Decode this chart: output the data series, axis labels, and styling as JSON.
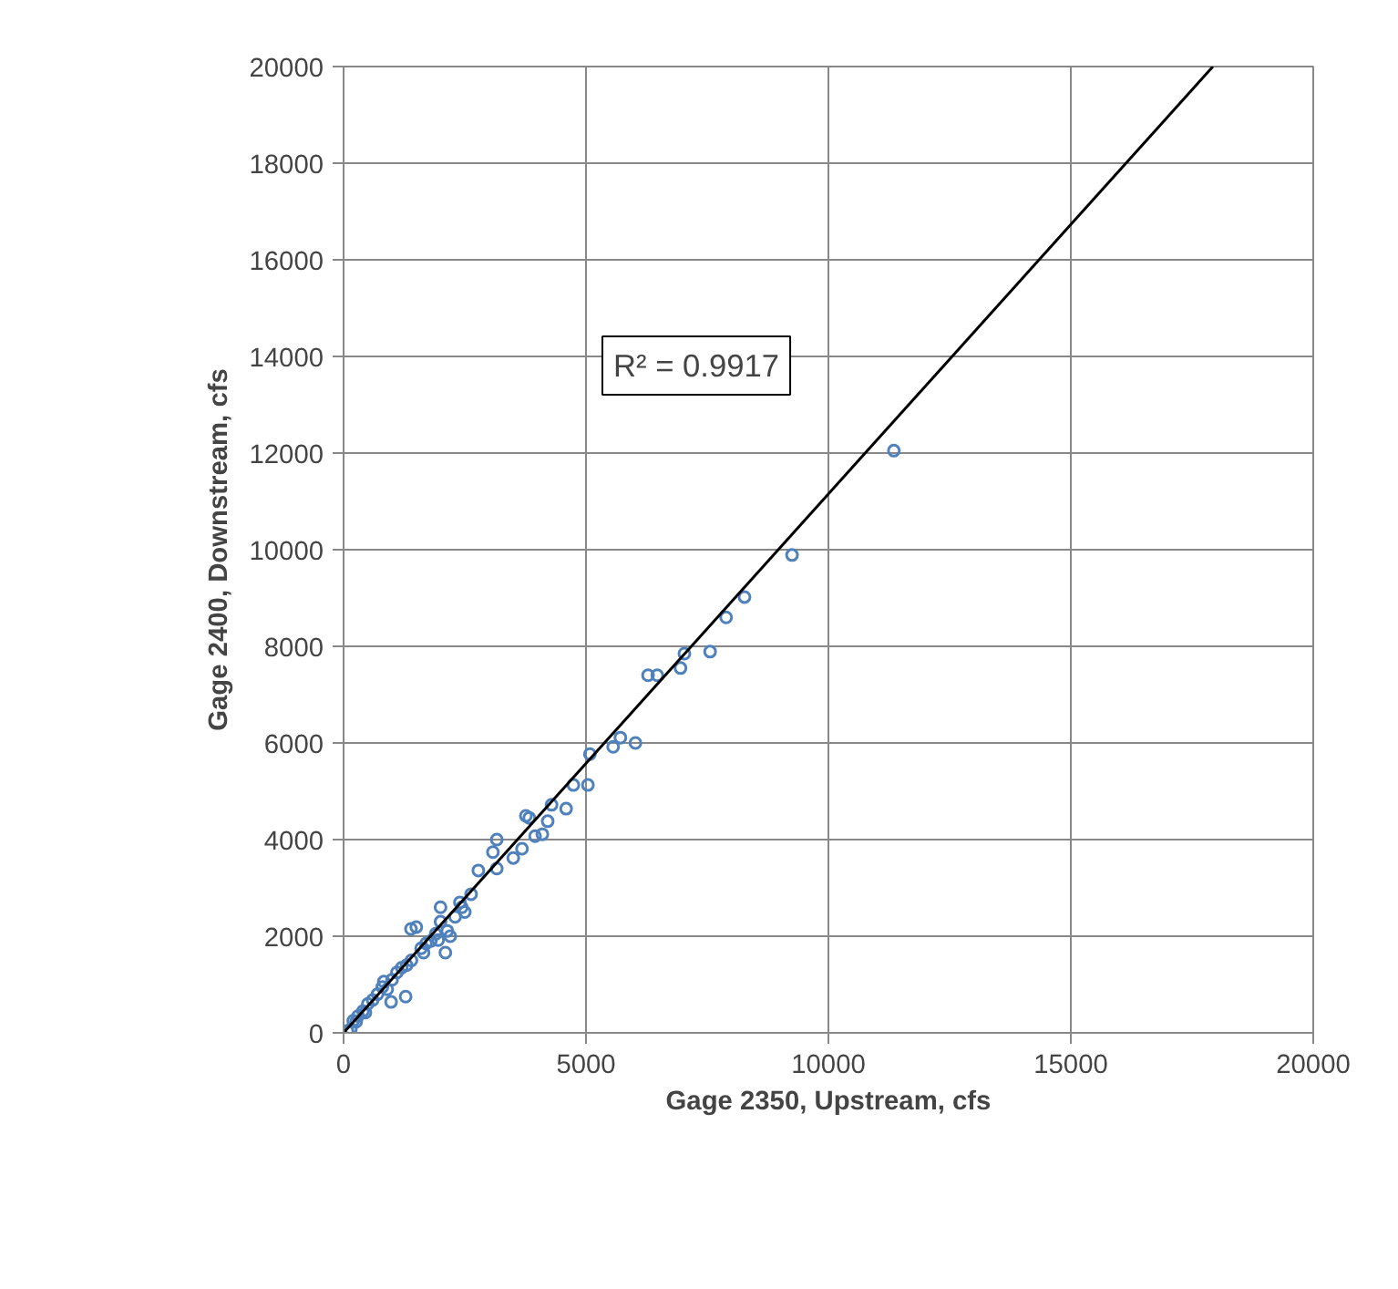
{
  "chart_data": {
    "type": "scatter",
    "xlabel": "Gage 2350, Upstream, cfs",
    "ylabel": "Gage 2400, Downstream, cfs",
    "xlim": [
      0,
      20000
    ],
    "ylim": [
      0,
      20000
    ],
    "xticks": [
      0,
      5000,
      10000,
      15000,
      20000
    ],
    "yticks": [
      0,
      2000,
      4000,
      6000,
      8000,
      10000,
      12000,
      14000,
      16000,
      18000,
      20000
    ],
    "grid": true,
    "annotations": [
      "R² = 0.9917"
    ],
    "series": [
      {
        "marker": "circle",
        "color": "#4f81bd",
        "x": [
          11350,
          9250,
          8270,
          7890,
          7560,
          7030,
          6950,
          6470,
          6280,
          6020,
          5710,
          5560,
          5040,
          5080,
          4740,
          4590,
          4290,
          4210,
          4100,
          3950,
          3760,
          3830,
          3680,
          3500,
          3160,
          3080,
          3160,
          2780,
          2630,
          2440,
          2140,
          1950,
          2100,
          1500,
          1390,
          1650,
          1280,
          980,
          830,
          600,
          450,
          260,
          150,
          80,
          1800,
          1600,
          1200,
          1000,
          700,
          500,
          300,
          2300,
          2000,
          2200,
          900,
          1400,
          2400,
          2000,
          1100,
          1700,
          2500,
          1300,
          800,
          400,
          200,
          1900
        ],
        "values": [
          12050,
          9890,
          9020,
          8600,
          7890,
          7850,
          7550,
          7400,
          7400,
          6000,
          6110,
          5920,
          5130,
          5770,
          5130,
          4640,
          4720,
          4380,
          4110,
          4070,
          4490,
          4450,
          3810,
          3620,
          4000,
          3740,
          3400,
          3360,
          2870,
          2600,
          2110,
          1920,
          1660,
          2190,
          2150,
          1660,
          750,
          640,
          1060,
          680,
          420,
          230,
          80,
          40,
          1900,
          1750,
          1350,
          1100,
          800,
          600,
          350,
          2400,
          2300,
          2000,
          900,
          1500,
          2700,
          2600,
          1250,
          1850,
          2500,
          1400,
          950,
          450,
          250,
          2050
        ]
      },
      {
        "type": "line",
        "color": "#000000",
        "x": [
          0,
          17930
        ],
        "values": [
          0,
          20000
        ]
      }
    ]
  }
}
